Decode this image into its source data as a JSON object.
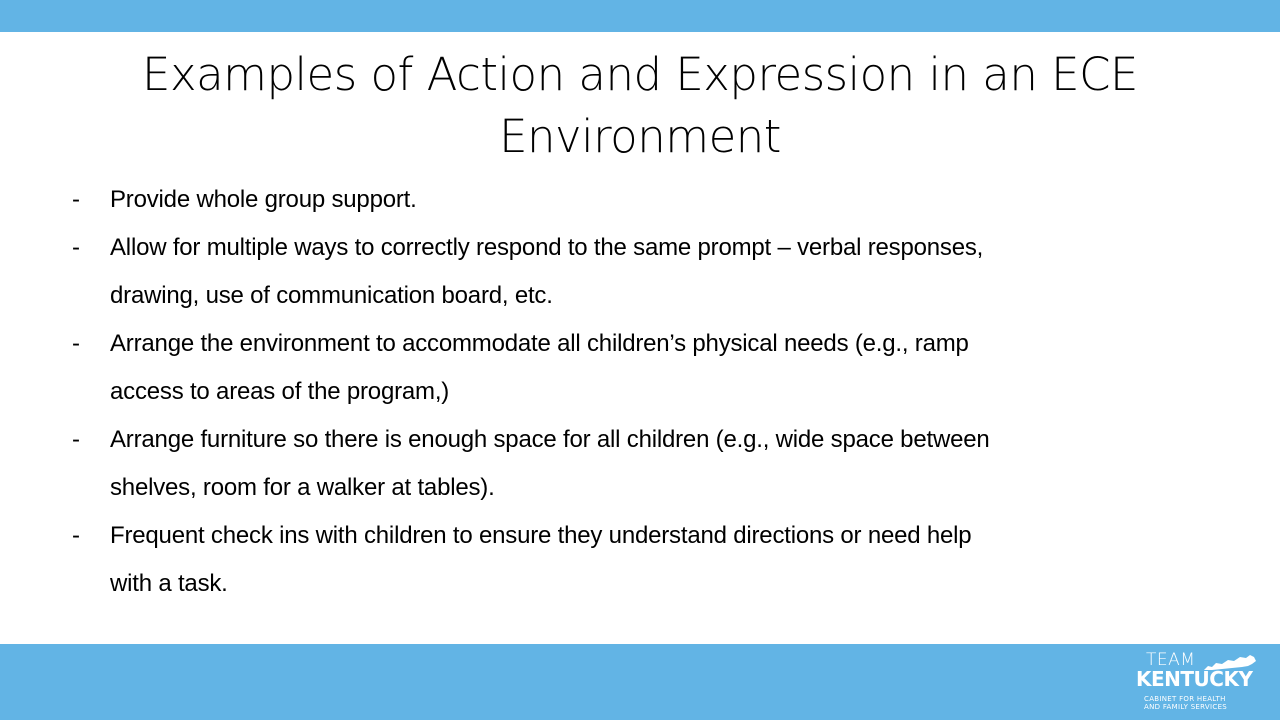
{
  "colors": {
    "accent_bar": "#62b4e5",
    "text": "#000000",
    "logo_text": "#ffffff"
  },
  "slide": {
    "title_line1": "Examples of Action and Expression in an ECE",
    "title_line2": "Environment",
    "bullet_marker": "-",
    "bullets": [
      {
        "lines": [
          "Provide whole group support."
        ]
      },
      {
        "lines": [
          "Allow for multiple ways to correctly respond to the same prompt – verbal responses,",
          "drawing, use of communication board, etc."
        ]
      },
      {
        "lines": [
          "Arrange the environment to accommodate all children’s physical needs (e.g., ramp",
          "access to areas of the program,)"
        ]
      },
      {
        "lines": [
          "Arrange furniture so there is enough space for all children (e.g., wide space between",
          "shelves, room for a walker at tables)."
        ]
      },
      {
        "lines": [
          "Frequent check ins with children to ensure they understand directions or need help",
          "with a task."
        ]
      }
    ]
  },
  "logo": {
    "team": "TEAM",
    "kentucky": "KENTUCKY",
    "cabinet_line1": "CABINET FOR HEALTH",
    "cabinet_line2": "AND FAMILY SERVICES",
    "icon": "kentucky-state-outline-icon"
  }
}
